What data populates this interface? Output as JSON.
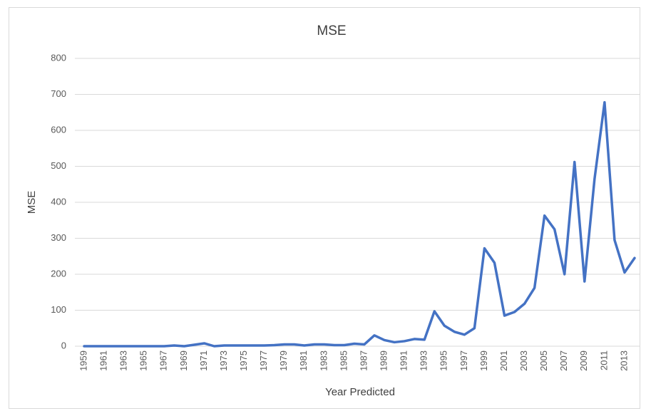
{
  "chart_data": {
    "type": "line",
    "title": "MSE",
    "x_label": "Year Predicted",
    "y_label": "MSE",
    "categories": [
      "1959",
      null,
      "1961",
      null,
      "1963",
      null,
      "1965",
      null,
      "1967",
      null,
      "1969",
      null,
      "1971",
      null,
      "1973",
      null,
      "1975",
      null,
      "1977",
      null,
      "1979",
      null,
      "1981",
      null,
      "1983",
      null,
      "1985",
      null,
      "1987",
      null,
      "1989",
      null,
      "1991",
      null,
      "1993",
      null,
      "1995",
      null,
      "1997",
      null,
      "1999",
      null,
      "2001",
      null,
      "2003",
      null,
      "2005",
      null,
      "2007",
      null,
      "2009",
      null,
      "2011",
      null,
      "2013",
      null
    ],
    "values": [
      0,
      0,
      0,
      0,
      0,
      0,
      0,
      0,
      0,
      2,
      0,
      4,
      8,
      0,
      2,
      2,
      2,
      2,
      2,
      3,
      5,
      5,
      2,
      5,
      5,
      3,
      3,
      7,
      5,
      30,
      17,
      11,
      14,
      20,
      18,
      97,
      57,
      40,
      32,
      50,
      272,
      232,
      85,
      95,
      118,
      162,
      363,
      325,
      200,
      512,
      180,
      465,
      678,
      295,
      205,
      245
    ],
    "color": "#4472c4",
    "ylim": [
      0,
      800
    ],
    "yticks": [
      0,
      100,
      200,
      300,
      400,
      500,
      600,
      700,
      800
    ],
    "grid": true
  }
}
